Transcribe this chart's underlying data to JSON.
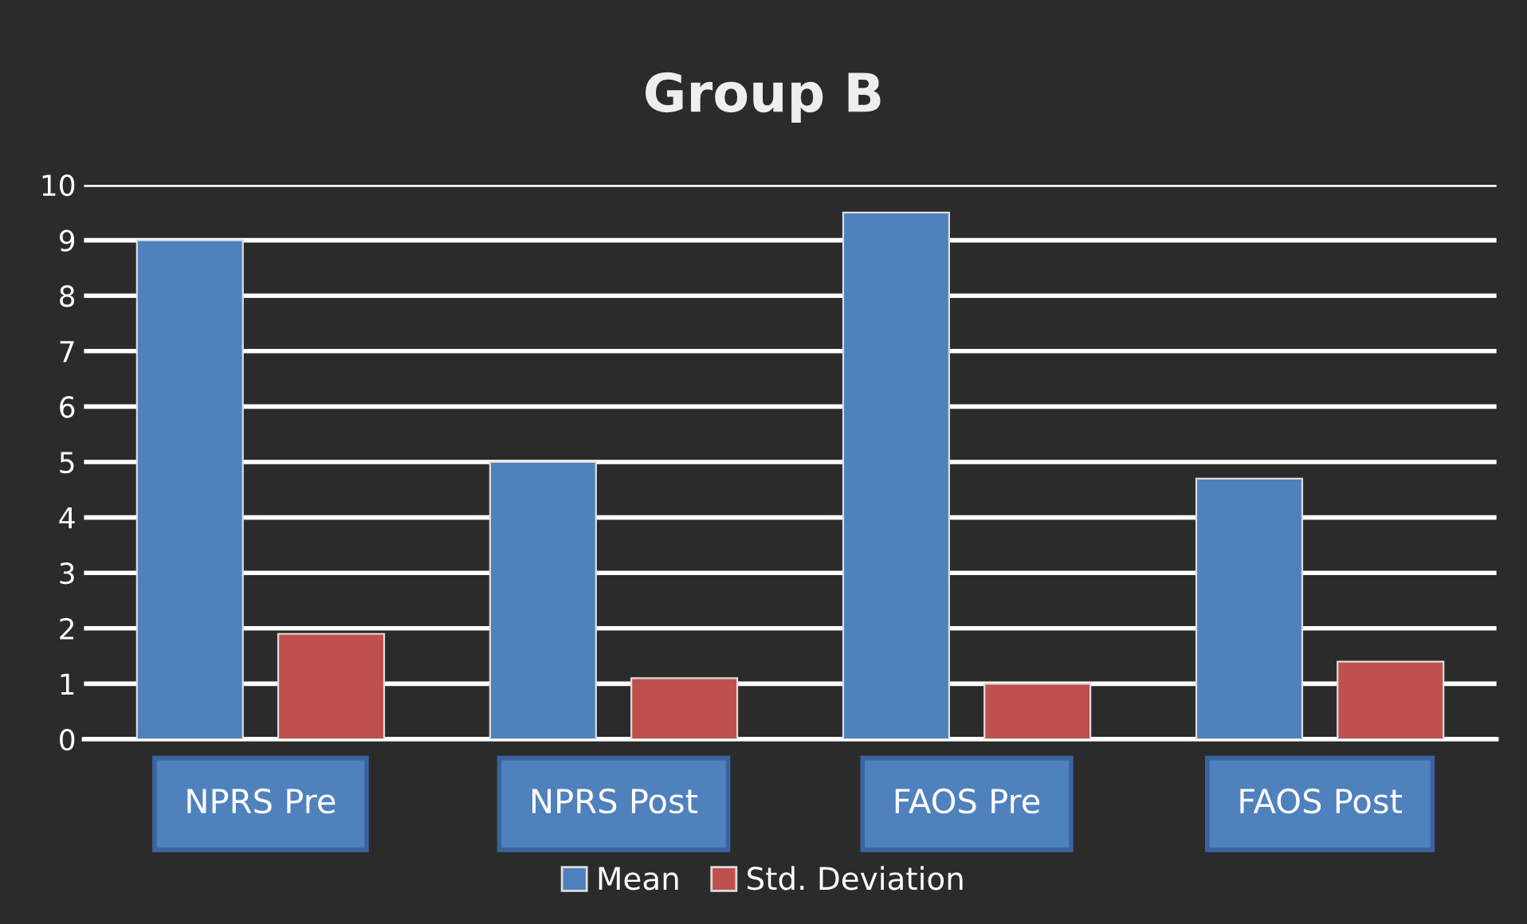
{
  "chart_data": {
    "type": "bar",
    "title": "Group B",
    "categories": [
      "NPRS Pre",
      "NPRS Post",
      "FAOS Pre",
      "FAOS Post"
    ],
    "series": [
      {
        "name": "Mean",
        "color": "#4f81bd",
        "values": [
          9.0,
          5.0,
          9.5,
          4.7
        ]
      },
      {
        "name": "Std. Deviation",
        "color": "#c0504d",
        "values": [
          1.9,
          1.1,
          1.0,
          1.4
        ]
      }
    ],
    "ylim": [
      0,
      10
    ],
    "yticks": [
      0,
      1,
      2,
      3,
      4,
      5,
      6,
      7,
      8,
      9,
      10
    ],
    "grid": "y",
    "legend": "bottom"
  }
}
